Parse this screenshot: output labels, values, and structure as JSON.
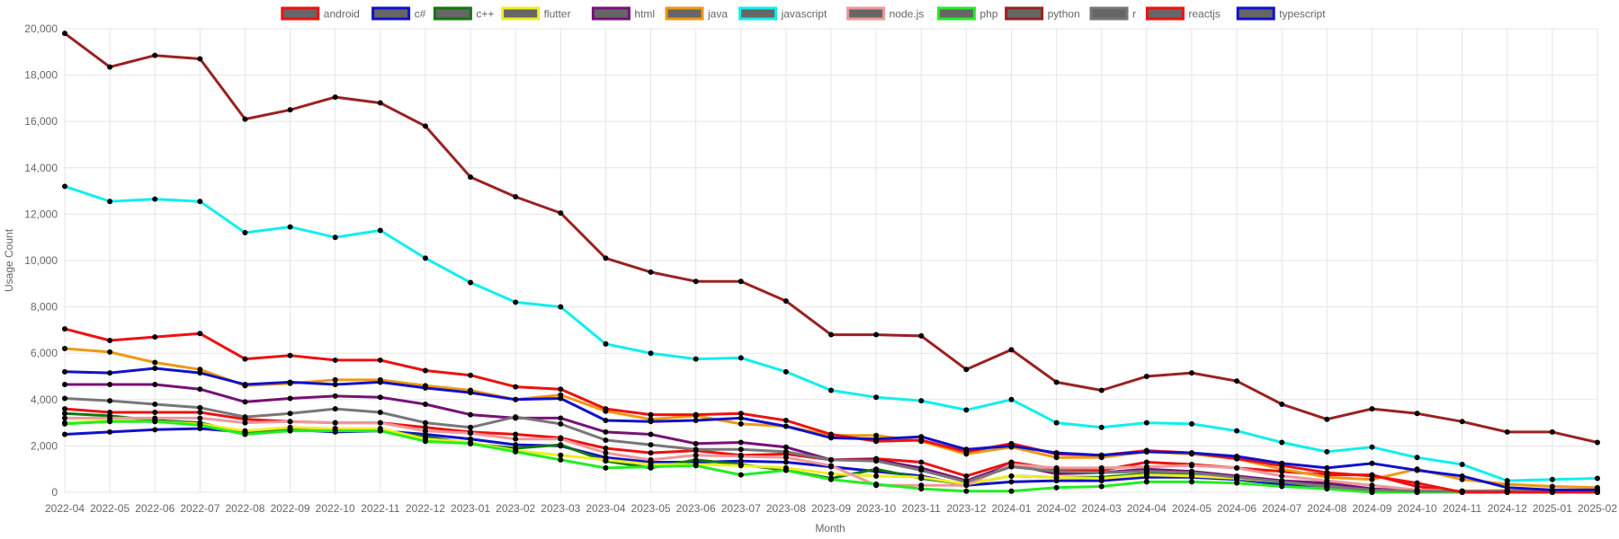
{
  "chart_data": {
    "type": "line",
    "title": "",
    "xlabel": "Month",
    "ylabel": "Usage Count",
    "ylim": [
      0,
      20000
    ],
    "yticks": [
      0,
      2000,
      4000,
      6000,
      8000,
      10000,
      12000,
      14000,
      16000,
      18000,
      20000
    ],
    "ytick_labels": [
      "0",
      "2,000",
      "4,000",
      "6,000",
      "8,000",
      "10,000",
      "12,000",
      "14,000",
      "16,000",
      "18,000",
      "20,000"
    ],
    "grid": true,
    "legend_position": "top",
    "categories": [
      "2022-04",
      "2022-05",
      "2022-06",
      "2022-07",
      "2022-08",
      "2022-09",
      "2022-10",
      "2022-11",
      "2022-12",
      "2023-01",
      "2023-02",
      "2023-03",
      "2023-04",
      "2023-05",
      "2023-06",
      "2023-07",
      "2023-08",
      "2023-09",
      "2023-10",
      "2023-11",
      "2023-12",
      "2024-01",
      "2024-02",
      "2024-03",
      "2024-04",
      "2024-05",
      "2024-06",
      "2024-07",
      "2024-08",
      "2024-09",
      "2024-10",
      "2024-11",
      "2024-12",
      "2025-01",
      "2025-02"
    ],
    "series": [
      {
        "name": "android",
        "color": "#ee1111",
        "values": [
          3600,
          3450,
          3450,
          3450,
          3150,
          3050,
          3000,
          3000,
          2800,
          2600,
          2500,
          2350,
          1900,
          1700,
          1800,
          1600,
          1650,
          1400,
          1450,
          1300,
          700,
          1300,
          1000,
          950,
          1300,
          1200,
          1050,
          900,
          750,
          750,
          250,
          0,
          0,
          0,
          0
        ]
      },
      {
        "name": "c#",
        "color": "#1111cc",
        "values": [
          2500,
          2600,
          2700,
          2750,
          2600,
          2700,
          2600,
          2650,
          2500,
          2300,
          2050,
          2000,
          1500,
          1300,
          1300,
          1350,
          1300,
          1100,
          900,
          700,
          300,
          450,
          500,
          500,
          650,
          650,
          550,
          350,
          200,
          0,
          0,
          0,
          0,
          0,
          0
        ]
      },
      {
        "name": "c++",
        "color": "#117711",
        "values": [
          3400,
          3300,
          3100,
          3000,
          2550,
          2700,
          2750,
          2650,
          2400,
          2100,
          1900,
          2050,
          1350,
          1050,
          1400,
          1200,
          950,
          600,
          1000,
          600,
          350,
          700,
          650,
          650,
          800,
          750,
          650,
          450,
          300,
          100,
          50,
          50,
          50,
          50,
          50
        ]
      },
      {
        "name": "flutter",
        "color": "#eeee22",
        "values": [
          3000,
          3100,
          3050,
          2950,
          2650,
          2800,
          2750,
          2750,
          2300,
          2150,
          1800,
          1600,
          1400,
          1200,
          1200,
          1150,
          1050,
          800,
          700,
          650,
          350,
          700,
          650,
          600,
          750,
          700,
          600,
          450,
          250,
          150,
          100,
          50,
          100,
          50,
          50
        ]
      },
      {
        "name": "html",
        "color": "#771177",
        "values": [
          4650,
          4650,
          4650,
          4450,
          3900,
          4050,
          4150,
          4100,
          3800,
          3350,
          3200,
          3200,
          2600,
          2500,
          2100,
          2150,
          1950,
          1400,
          1400,
          1050,
          500,
          1200,
          800,
          850,
          1000,
          900,
          700,
          500,
          400,
          150,
          50,
          50,
          50,
          50,
          50
        ]
      },
      {
        "name": "java",
        "color": "#ee9911",
        "values": [
          6200,
          6050,
          5600,
          5300,
          4600,
          4700,
          4850,
          4850,
          4600,
          4400,
          4000,
          4200,
          3500,
          3150,
          3300,
          2950,
          2850,
          2450,
          2450,
          2200,
          1650,
          1950,
          1500,
          1500,
          1750,
          1650,
          1450,
          1000,
          650,
          550,
          1000,
          550,
          350,
          250,
          200
        ]
      },
      {
        "name": "javascript",
        "color": "#11eeee",
        "values": [
          13200,
          12550,
          12650,
          12550,
          11200,
          11450,
          11000,
          11300,
          10100,
          9050,
          8200,
          8000,
          6400,
          6000,
          5750,
          5800,
          5200,
          4400,
          4100,
          3950,
          3550,
          4000,
          3000,
          2800,
          3000,
          2950,
          2650,
          2150,
          1750,
          1950,
          1500,
          1200,
          500,
          550,
          600
        ]
      },
      {
        "name": "node.js",
        "color": "#ee9999",
        "values": [
          3200,
          3200,
          3200,
          3200,
          3000,
          3050,
          3000,
          3000,
          2650,
          2550,
          2300,
          2300,
          1700,
          1400,
          1600,
          1550,
          1500,
          1150,
          300,
          300,
          300,
          1200,
          1050,
          1050,
          1100,
          1150,
          1050,
          700,
          500,
          300,
          100,
          50,
          50,
          50,
          50
        ]
      },
      {
        "name": "php",
        "color": "#22ee22",
        "values": [
          2950,
          3050,
          3050,
          2900,
          2500,
          2650,
          2650,
          2650,
          2200,
          2100,
          1750,
          1400,
          1050,
          1100,
          1150,
          750,
          950,
          550,
          350,
          150,
          50,
          50,
          200,
          250,
          450,
          450,
          400,
          250,
          150,
          0,
          0,
          0,
          0,
          0,
          0
        ]
      },
      {
        "name": "python",
        "color": "#992222",
        "values": [
          19800,
          18350,
          18850,
          18700,
          16100,
          16500,
          17050,
          16800,
          15800,
          13600,
          12750,
          12050,
          10100,
          9500,
          9100,
          9100,
          8250,
          6800,
          6800,
          6750,
          5300,
          6150,
          4750,
          4400,
          5000,
          5150,
          4800,
          3800,
          3150,
          3600,
          3400,
          3050,
          2600,
          2600,
          2150
        ]
      },
      {
        "name": "r",
        "color": "#777777",
        "values": [
          4050,
          3950,
          3800,
          3650,
          3250,
          3400,
          3600,
          3450,
          3000,
          2800,
          3250,
          2950,
          2250,
          2050,
          1850,
          1850,
          1750,
          1400,
          1350,
          950,
          450,
          1100,
          900,
          850,
          900,
          850,
          650,
          450,
          250,
          100,
          50,
          50,
          50,
          50,
          50
        ]
      },
      {
        "name": "reactjs",
        "color": "#ee1111",
        "values": [
          7050,
          6550,
          6700,
          6850,
          5750,
          5900,
          5700,
          5700,
          5250,
          5050,
          4550,
          4450,
          3600,
          3350,
          3350,
          3400,
          3100,
          2500,
          2200,
          2250,
          1750,
          2100,
          1650,
          1600,
          1800,
          1700,
          1450,
          1150,
          850,
          700,
          400,
          0,
          0,
          0,
          0
        ]
      },
      {
        "name": "typescript",
        "color": "#1111cc",
        "values": [
          5200,
          5150,
          5350,
          5150,
          4650,
          4750,
          4650,
          4750,
          4500,
          4300,
          4000,
          4050,
          3100,
          3050,
          3100,
          3200,
          2850,
          2350,
          2300,
          2400,
          1850,
          2000,
          1700,
          1600,
          1750,
          1700,
          1550,
          1250,
          1050,
          1250,
          950,
          700,
          200,
          100,
          100
        ]
      }
    ]
  }
}
